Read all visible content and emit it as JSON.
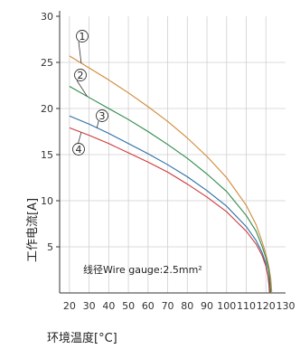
{
  "chart_data": {
    "type": "line",
    "xlabel": "环境温度[°C]",
    "ylabel": "工作电流[A]",
    "annotation": "线径Wire gauge:2.5mm²",
    "x_ticks": [
      20,
      30,
      40,
      50,
      60,
      70,
      80,
      90,
      100,
      110,
      120,
      130
    ],
    "y_ticks": [
      5,
      10,
      15,
      20,
      25,
      30
    ],
    "xlim": [
      15,
      130
    ],
    "ylim": [
      0,
      30
    ],
    "grid": true,
    "series": [
      {
        "name": "①",
        "color": "#d08a3a",
        "x": [
          20,
          30,
          40,
          50,
          60,
          70,
          80,
          90,
          100,
          110,
          115,
          118,
          120,
          121.5,
          122.5,
          123
        ],
        "y": [
          25.7,
          24.4,
          23.1,
          21.7,
          20.2,
          18.6,
          16.8,
          14.8,
          12.5,
          9.5,
          7.4,
          5.6,
          4.2,
          2.8,
          1.5,
          0.0
        ]
      },
      {
        "name": "②",
        "color": "#2e8b4a",
        "x": [
          20,
          30,
          40,
          50,
          60,
          70,
          80,
          90,
          100,
          110,
          115,
          118,
          120,
          121.5,
          122,
          122.5
        ],
        "y": [
          22.4,
          21.2,
          20.0,
          18.8,
          17.5,
          16.1,
          14.6,
          12.9,
          11.0,
          8.4,
          6.7,
          5.1,
          3.8,
          2.5,
          1.4,
          0.0
        ]
      },
      {
        "name": "③",
        "color": "#2c6fa6",
        "x": [
          20,
          30,
          40,
          50,
          60,
          70,
          80,
          90,
          100,
          110,
          115,
          118,
          120,
          121,
          121.7,
          122
        ],
        "y": [
          19.2,
          18.3,
          17.3,
          16.2,
          15.1,
          13.9,
          12.6,
          11.1,
          9.4,
          7.2,
          5.7,
          4.4,
          3.2,
          2.1,
          1.2,
          0.0
        ]
      },
      {
        "name": "④",
        "color": "#cc3a3a",
        "x": [
          20,
          30,
          40,
          50,
          60,
          70,
          80,
          90,
          100,
          110,
          115,
          118,
          120,
          121,
          121.5,
          121.8
        ],
        "y": [
          17.9,
          17.1,
          16.2,
          15.2,
          14.2,
          13.1,
          11.8,
          10.4,
          8.8,
          6.7,
          5.3,
          4.1,
          2.9,
          1.9,
          1.0,
          0.0
        ]
      }
    ]
  }
}
